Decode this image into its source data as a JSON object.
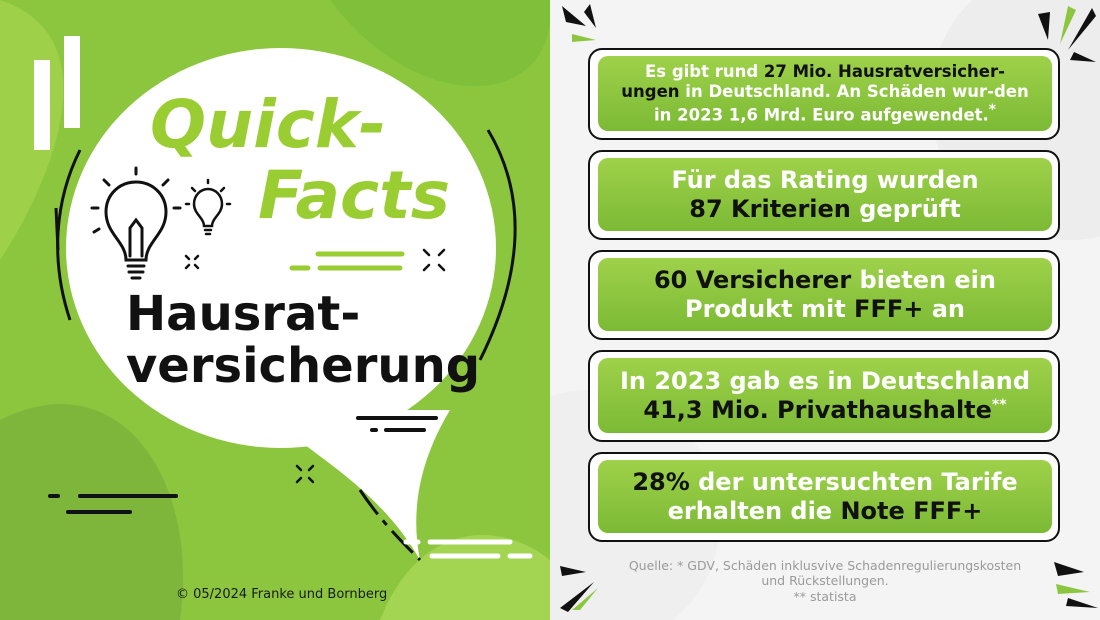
{
  "left": {
    "title_line1": "Quick-",
    "title_line2": "Facts",
    "subtitle_line1": "Hausrat-",
    "subtitle_line2": "versicherung",
    "copyright": "© 05/2024 Franke und Bornberg"
  },
  "facts": [
    {
      "p": [
        "Es gibt rund ",
        "27 Mio. Hausratversicher-",
        "ungen",
        " in Deutschland. An Schäden wur-den in 2023 1,6 Mrd. Euro aufgewendet.",
        "*"
      ]
    },
    {
      "p": [
        "Für das Rating wurden",
        "87 Kriterien",
        "geprüft"
      ]
    },
    {
      "p": [
        "60 Versicherer",
        "bieten ein Produkt mit",
        "FFF+",
        "an"
      ]
    },
    {
      "p": [
        "In 2023 gab es in Deutschland",
        "41,3 Mio. Privathaushalte",
        "**"
      ]
    },
    {
      "p": [
        "28%",
        "der untersuchten Tarife erhalten die",
        "Note FFF+"
      ]
    }
  ],
  "source": {
    "line1": "Quelle: * GDV, Schäden inklusvive Schadenregulierungskosten",
    "line2": "und Rückstellungen.",
    "line3": "** statista"
  },
  "colors": {
    "green": "#8cc63f",
    "light_green": "#9acd32",
    "dark": "#111111"
  }
}
